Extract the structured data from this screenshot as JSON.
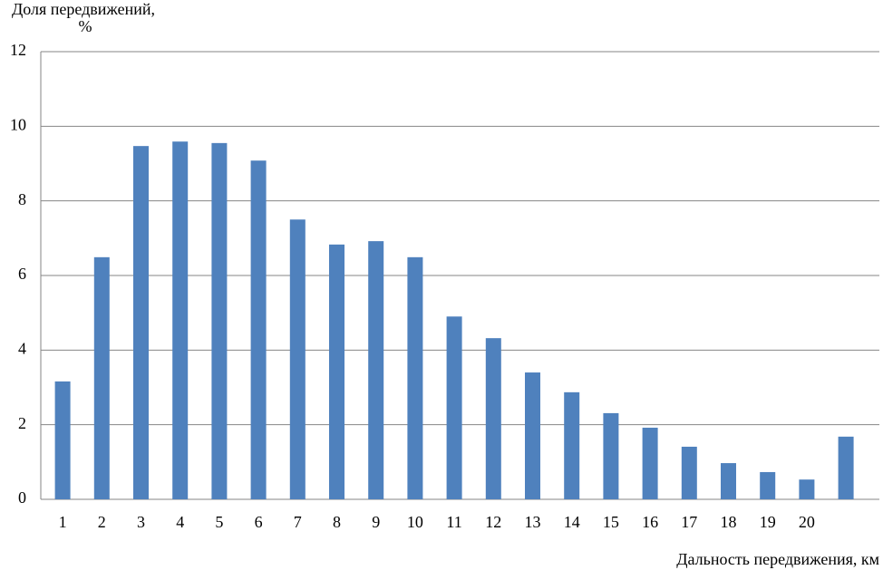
{
  "chart_data": {
    "type": "bar",
    "y_label": [
      "Доля передвижений,",
      "%"
    ],
    "x_label": "Дальность передвижения, км",
    "categories": [
      "1",
      "2",
      "3",
      "4",
      "5",
      "6",
      "7",
      "8",
      "9",
      "10",
      "11",
      "12",
      "13",
      "14",
      "15",
      "16",
      "17",
      "18",
      "19",
      "20",
      null
    ],
    "values": [
      3.16,
      6.49,
      9.47,
      9.59,
      9.55,
      9.08,
      7.5,
      6.83,
      6.92,
      6.49,
      4.9,
      4.32,
      3.4,
      2.87,
      2.31,
      1.92,
      1.41,
      0.97,
      0.73,
      0.53,
      1.68
    ],
    "color": "#4f81bd",
    "ylim": [
      0,
      12
    ],
    "yticks": [
      0,
      2,
      4,
      6,
      8,
      10,
      12
    ],
    "grid": true
  }
}
